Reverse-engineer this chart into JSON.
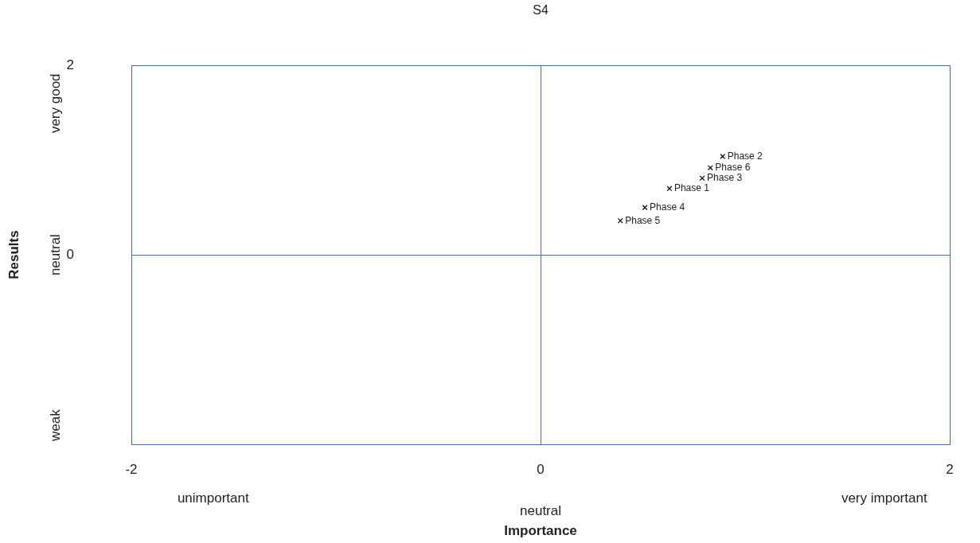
{
  "chart_data": {
    "type": "scatter",
    "title": "S4",
    "xlabel": "Importance",
    "ylabel": "Results",
    "xlim": [
      -2,
      2
    ],
    "ylim": [
      -2,
      2
    ],
    "xticks": [
      -2,
      0,
      2
    ],
    "yticks": [
      {
        "value": -2,
        "label": null
      },
      0,
      2
    ],
    "grid": true,
    "legend": false,
    "marker": "cross",
    "series": [
      {
        "name": "Phase 2",
        "color": "#000000",
        "x": [
          0.89
        ],
        "values": [
          1.04
        ]
      },
      {
        "name": "Phase 6",
        "color": "#000000",
        "x": [
          0.83
        ],
        "values": [
          0.92
        ]
      },
      {
        "name": "Phase 3",
        "color": "#000000",
        "x": [
          0.79
        ],
        "values": [
          0.81
        ]
      },
      {
        "name": "Phase 1",
        "color": "#000000",
        "x": [
          0.63
        ],
        "values": [
          0.7
        ]
      },
      {
        "name": "Phase 4",
        "color": "#000000",
        "x": [
          0.51
        ],
        "values": [
          0.5
        ]
      },
      {
        "name": "Phase 5",
        "color": "#000000",
        "x": [
          0.39
        ],
        "values": [
          0.36
        ]
      }
    ],
    "annotations": [
      "very good",
      "neutral",
      "weak",
      "unimportant",
      "neutral",
      "very important"
    ]
  }
}
